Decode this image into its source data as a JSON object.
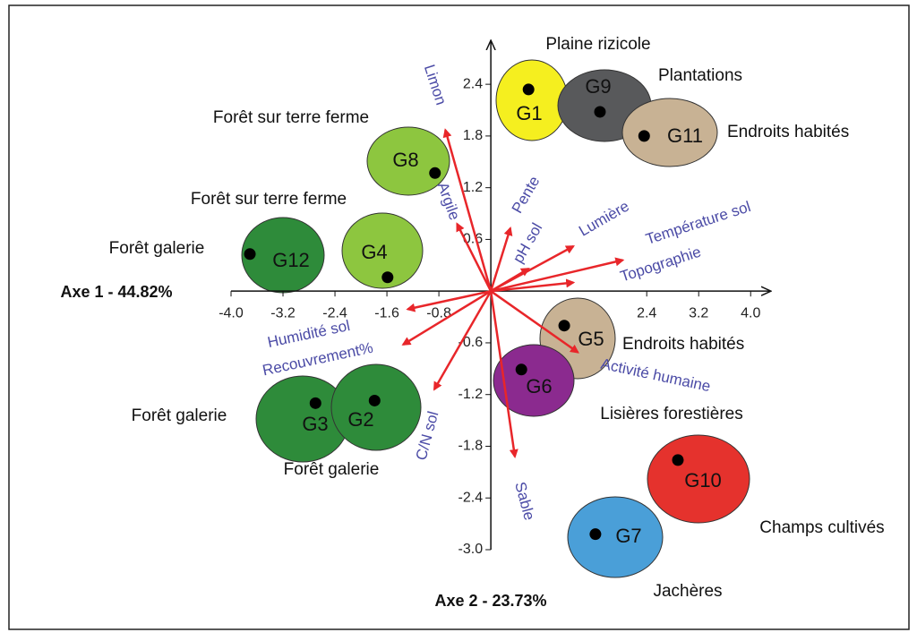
{
  "chart_data": {
    "type": "scatter",
    "xlabel": "Axe 1 - 44.82%",
    "ylabel": "Axe 2 - 23.73%",
    "xlim": [
      -4.0,
      4.3
    ],
    "ylim": [
      -3.0,
      2.9
    ],
    "xticks": [
      {
        "value": -4.0,
        "label": "-4.0"
      },
      -3.2,
      -2.4,
      -1.6,
      -0.8,
      2.4,
      3.2,
      {
        "value": 4.0,
        "label": "4.0"
      }
    ],
    "yticks": [
      2.4,
      1.8,
      1.2,
      0.6,
      -0.6,
      -1.2,
      -1.8,
      -2.4,
      {
        "value": -3.0,
        "label": "-3.0"
      }
    ],
    "vector_color": "#e8262a",
    "vector_label_color": "#4b4ba6",
    "groups": [
      {
        "name": "G1",
        "habitat": "Plaine rizicole",
        "color": "#f5ef1f",
        "x": 0.58,
        "y": 2.34
      },
      {
        "name": "G9",
        "habitat": "Plantations",
        "color": "#58595b",
        "x": 1.68,
        "y": 2.08
      },
      {
        "name": "G11",
        "habitat": "Endroits habités",
        "color": "#c8b294",
        "x": 2.36,
        "y": 1.8
      },
      {
        "name": "G8",
        "habitat": "Forêt sur terre ferme",
        "color": "#8dc63f",
        "x": -0.86,
        "y": 1.37
      },
      {
        "name": "G4",
        "habitat": "Forêt sur terre ferme",
        "color": "#8dc63f",
        "x": -1.59,
        "y": 0.16
      },
      {
        "name": "G12",
        "habitat": "Forêt galerie",
        "color": "#2e8b3a",
        "x": -3.71,
        "y": 0.43
      },
      {
        "name": "G5",
        "habitat": "Endroits habités",
        "color": "#c8b294",
        "x": 1.13,
        "y": -0.4
      },
      {
        "name": "G6",
        "habitat": "Lisières forestières",
        "color": "#8b2a8f",
        "x": 0.47,
        "y": -0.91
      },
      {
        "name": "G3",
        "habitat": "Forêt galerie",
        "color": "#2e8b3a",
        "x": -2.7,
        "y": -1.3
      },
      {
        "name": "G2",
        "habitat": "Forêt galerie",
        "color": "#2e8b3a",
        "x": -1.79,
        "y": -1.27
      },
      {
        "name": "G10",
        "habitat": "Champs cultivés",
        "color": "#e5322d",
        "x": 2.88,
        "y": -1.96
      },
      {
        "name": "G7",
        "habitat": "Jachères",
        "color": "#4a9fd8",
        "x": 1.61,
        "y": -2.82
      }
    ],
    "vectors": [
      {
        "name": "Limon",
        "x": -0.7,
        "y": 1.87
      },
      {
        "name": "Argile",
        "x": -0.52,
        "y": 0.78
      },
      {
        "name": "Pente",
        "x": 0.3,
        "y": 0.73
      },
      {
        "name": "pH sol",
        "x": 0.58,
        "y": 0.26
      },
      {
        "name": "Lumière",
        "x": 1.27,
        "y": 0.52
      },
      {
        "name": "Température sol",
        "x": 2.03,
        "y": 0.36
      },
      {
        "name": "Topographie",
        "x": 1.27,
        "y": 0.1
      },
      {
        "name": "Humidité sol",
        "x": -1.28,
        "y": -0.21
      },
      {
        "name": "Recouvrement%",
        "x": -1.35,
        "y": -0.62
      },
      {
        "name": "C/N sol",
        "x": -0.87,
        "y": -1.14
      },
      {
        "name": "Sable",
        "x": 0.37,
        "y": -1.92
      },
      {
        "name": "Activité humaine",
        "x": 1.34,
        "y": -0.71
      }
    ]
  }
}
